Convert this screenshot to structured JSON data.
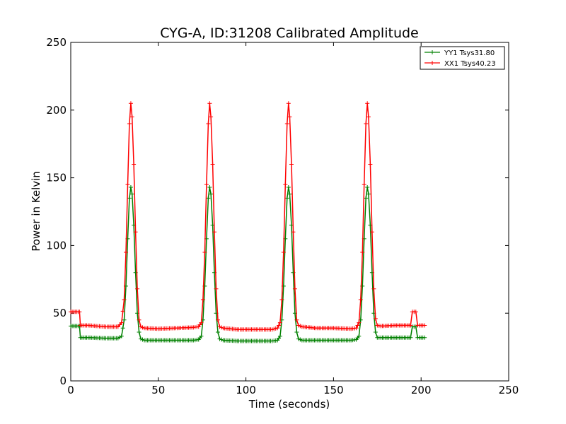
{
  "chart_data": {
    "type": "line",
    "title": "CYG-A, ID:31208 Calibrated Amplitude",
    "xlabel": "Time (seconds)",
    "ylabel": "Power in Kelvin",
    "xlim": [
      0,
      250
    ],
    "ylim": [
      0,
      250
    ],
    "xticks": [
      0,
      50,
      100,
      150,
      200,
      250
    ],
    "yticks": [
      0,
      50,
      100,
      150,
      200,
      250
    ],
    "grid": false,
    "legend_position": "top-right",
    "marker": "+",
    "series": [
      {
        "name": "YY1 Tsys31.80",
        "color": "#008000",
        "points": [
          [
            0,
            40.5
          ],
          [
            5,
            40.5
          ],
          [
            5.5,
            32
          ],
          [
            10,
            32
          ],
          [
            20,
            31.5
          ],
          [
            27,
            31.5
          ],
          [
            29,
            33
          ],
          [
            30.5,
            45
          ],
          [
            31.5,
            70
          ],
          [
            32.5,
            105
          ],
          [
            33.5,
            135
          ],
          [
            34.3,
            143
          ],
          [
            35,
            138
          ],
          [
            36,
            115
          ],
          [
            37,
            80
          ],
          [
            38,
            50
          ],
          [
            39,
            36
          ],
          [
            40,
            31
          ],
          [
            42,
            30
          ],
          [
            50,
            30
          ],
          [
            60,
            30
          ],
          [
            70,
            30
          ],
          [
            73,
            30.5
          ],
          [
            74.5,
            33
          ],
          [
            75.5,
            45
          ],
          [
            76.5,
            70
          ],
          [
            77.5,
            105
          ],
          [
            78.5,
            135
          ],
          [
            79.3,
            143
          ],
          [
            80,
            138
          ],
          [
            81,
            115
          ],
          [
            82,
            80
          ],
          [
            83,
            50
          ],
          [
            84,
            36
          ],
          [
            85,
            31
          ],
          [
            87,
            30
          ],
          [
            95,
            29.5
          ],
          [
            105,
            29.5
          ],
          [
            115,
            29.5
          ],
          [
            118,
            30
          ],
          [
            119.5,
            33
          ],
          [
            120.5,
            45
          ],
          [
            121.5,
            70
          ],
          [
            122.5,
            105
          ],
          [
            123.5,
            135
          ],
          [
            124.3,
            143
          ],
          [
            125,
            138
          ],
          [
            126,
            115
          ],
          [
            127,
            80
          ],
          [
            128,
            50
          ],
          [
            129,
            36
          ],
          [
            130,
            31
          ],
          [
            132,
            30
          ],
          [
            140,
            30
          ],
          [
            150,
            30
          ],
          [
            160,
            30
          ],
          [
            163,
            30.5
          ],
          [
            164.5,
            33
          ],
          [
            165.5,
            45
          ],
          [
            166.5,
            70
          ],
          [
            167.5,
            105
          ],
          [
            168.5,
            135
          ],
          [
            169.3,
            143
          ],
          [
            170,
            138
          ],
          [
            171,
            115
          ],
          [
            172,
            80
          ],
          [
            173,
            50
          ],
          [
            174,
            36
          ],
          [
            175,
            32
          ],
          [
            177,
            32
          ],
          [
            185,
            32
          ],
          [
            194,
            32
          ],
          [
            195,
            40
          ],
          [
            197,
            40
          ],
          [
            198,
            32
          ],
          [
            202,
            32
          ]
        ]
      },
      {
        "name": "XX1 Tsys40.23",
        "color": "#ff0000",
        "points": [
          [
            0,
            51
          ],
          [
            5,
            51
          ],
          [
            5.5,
            41
          ],
          [
            10,
            41
          ],
          [
            20,
            40
          ],
          [
            27,
            40
          ],
          [
            29,
            43
          ],
          [
            30.5,
            60
          ],
          [
            31.5,
            95
          ],
          [
            32.5,
            145
          ],
          [
            33.5,
            190
          ],
          [
            34.3,
            205
          ],
          [
            35,
            195
          ],
          [
            36,
            160
          ],
          [
            37,
            110
          ],
          [
            38,
            68
          ],
          [
            39,
            45
          ],
          [
            40,
            40
          ],
          [
            42,
            39
          ],
          [
            50,
            38.5
          ],
          [
            60,
            39
          ],
          [
            70,
            39.5
          ],
          [
            73,
            40
          ],
          [
            74.5,
            43
          ],
          [
            75.5,
            60
          ],
          [
            76.5,
            95
          ],
          [
            77.5,
            145
          ],
          [
            78.5,
            190
          ],
          [
            79.3,
            205
          ],
          [
            80,
            195
          ],
          [
            81,
            160
          ],
          [
            82,
            110
          ],
          [
            83,
            68
          ],
          [
            84,
            45
          ],
          [
            85,
            40
          ],
          [
            87,
            39
          ],
          [
            95,
            38
          ],
          [
            105,
            38
          ],
          [
            115,
            38
          ],
          [
            118,
            39
          ],
          [
            119.5,
            43
          ],
          [
            120.5,
            60
          ],
          [
            121.5,
            95
          ],
          [
            122.5,
            145
          ],
          [
            123.5,
            190
          ],
          [
            124.3,
            205
          ],
          [
            125,
            195
          ],
          [
            126,
            160
          ],
          [
            127,
            110
          ],
          [
            128,
            68
          ],
          [
            129,
            45
          ],
          [
            130,
            41
          ],
          [
            132,
            40
          ],
          [
            140,
            39
          ],
          [
            150,
            39
          ],
          [
            160,
            38.5
          ],
          [
            163,
            39
          ],
          [
            164.5,
            43
          ],
          [
            165.5,
            60
          ],
          [
            166.5,
            95
          ],
          [
            167.5,
            145
          ],
          [
            168.5,
            190
          ],
          [
            169.3,
            205
          ],
          [
            170,
            195
          ],
          [
            171,
            160
          ],
          [
            172,
            110
          ],
          [
            173,
            68
          ],
          [
            174,
            46
          ],
          [
            175,
            41
          ],
          [
            177,
            40.5
          ],
          [
            185,
            41
          ],
          [
            194,
            41
          ],
          [
            195,
            51
          ],
          [
            197,
            51
          ],
          [
            198,
            41
          ],
          [
            202,
            41
          ]
        ]
      }
    ]
  }
}
